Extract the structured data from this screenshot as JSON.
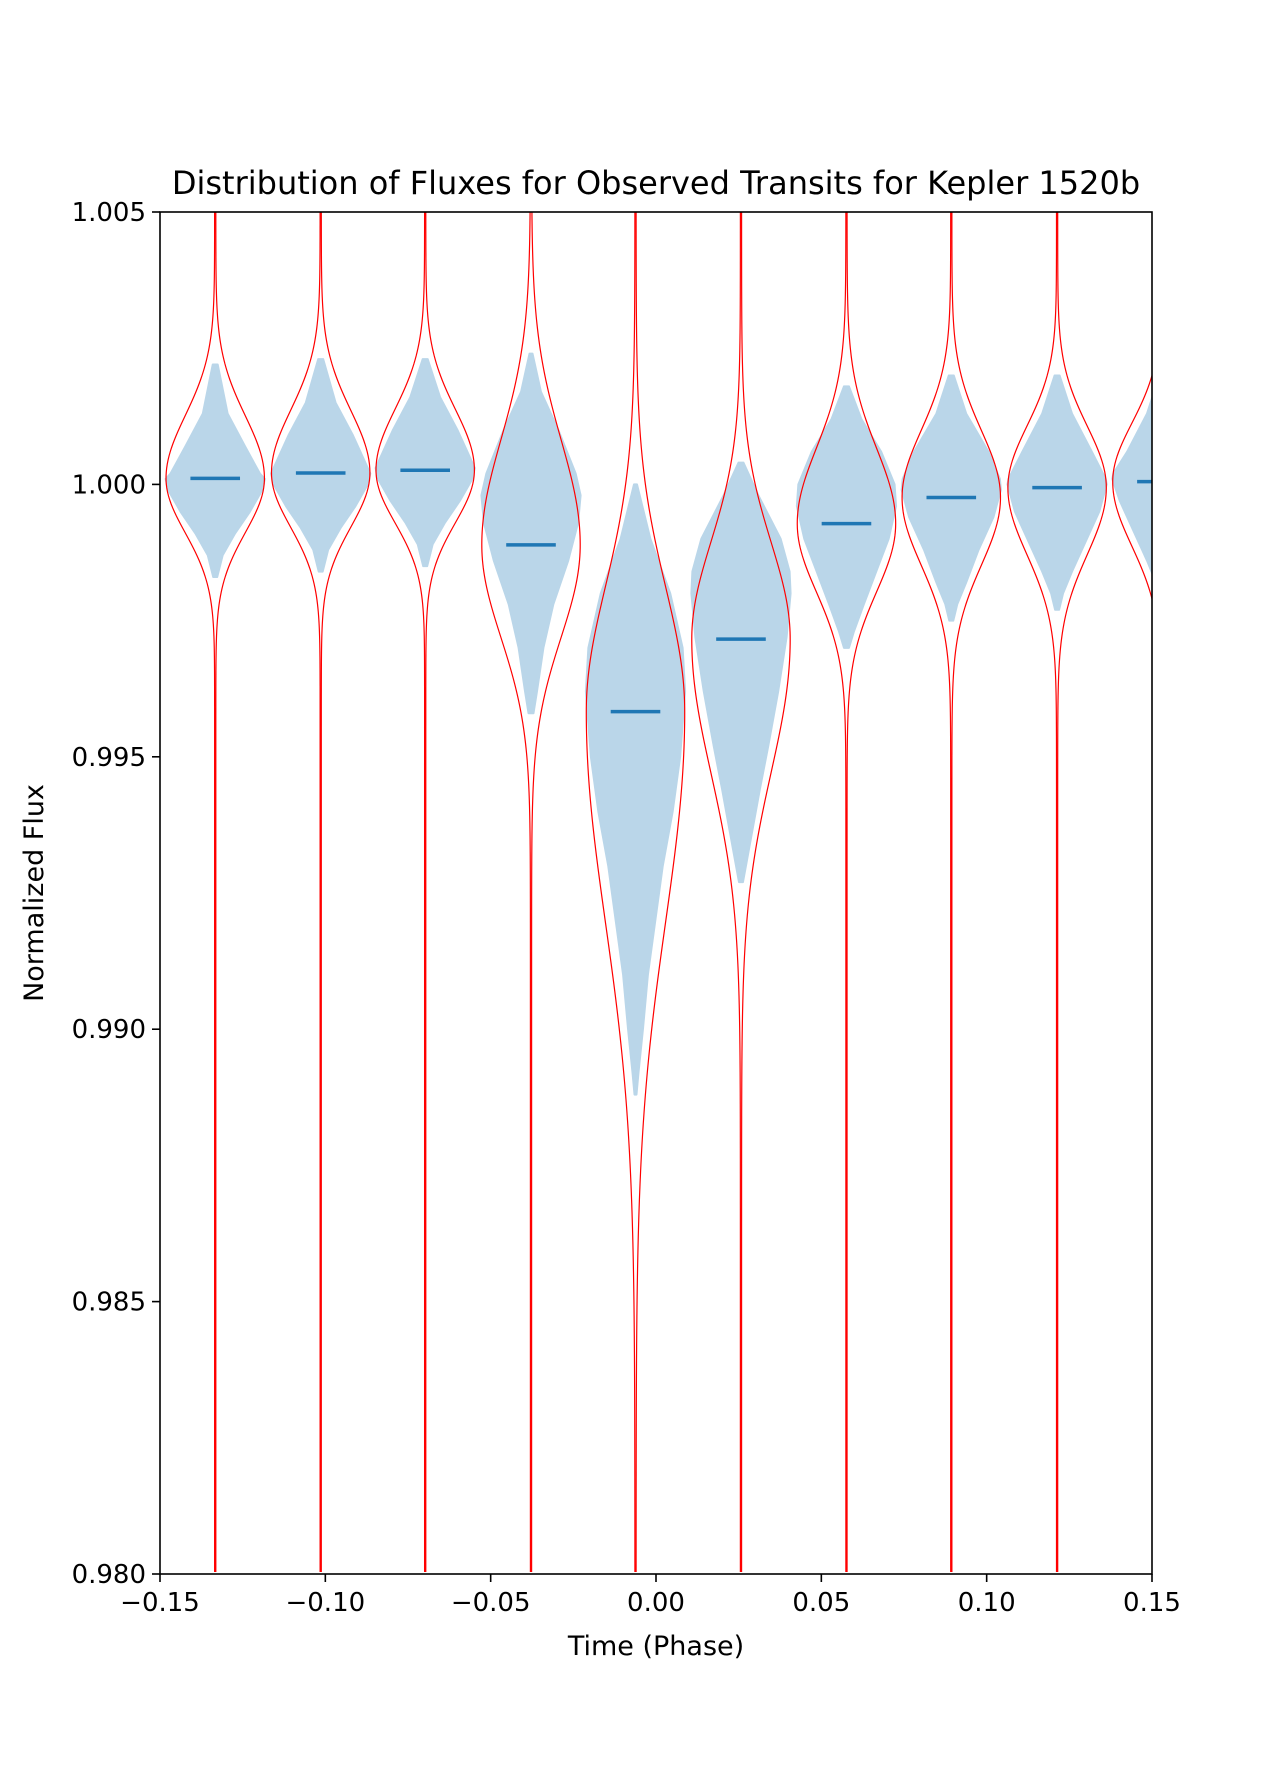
{
  "chart_data": {
    "type": "violin",
    "title": "Distribution of Fluxes for Observed Transits for Kepler 1520b",
    "xlabel": "Time (Phase)",
    "ylabel": "Normalized Flux",
    "xlim": [
      -0.15,
      0.15
    ],
    "ylim": [
      0.98,
      1.005
    ],
    "x_ticks": [
      -0.15,
      -0.1,
      -0.05,
      0.0,
      0.05,
      0.1,
      0.15
    ],
    "x_tick_labels": [
      "−0.15",
      "−0.10",
      "−0.05",
      "0.00",
      "0.05",
      "0.10",
      "0.15"
    ],
    "y_ticks": [
      0.98,
      0.985,
      0.99,
      0.995,
      1.0,
      1.005
    ],
    "y_tick_labels": [
      "0.980",
      "0.985",
      "0.990",
      "0.995",
      "1.000",
      "1.005"
    ],
    "grid": false,
    "colors": {
      "violin_fill": "#bad6e9",
      "median": "#1f77b4",
      "model_curve": "#ff0000"
    },
    "bins": [
      {
        "x": -0.1333,
        "median": 1.00011,
        "half_width": 0.015,
        "shape": [
          [
            1.0022,
            0.05
          ],
          [
            1.0013,
            0.25
          ],
          [
            1.0007,
            0.6
          ],
          [
            1.0002,
            0.9
          ],
          [
            1.0001,
            1.0
          ],
          [
            0.9999,
            0.95
          ],
          [
            0.9995,
            0.7
          ],
          [
            0.9991,
            0.4
          ],
          [
            0.9987,
            0.15
          ],
          [
            0.9983,
            0.04
          ]
        ]
      },
      {
        "x": -0.1014,
        "median": 1.00021,
        "half_width": 0.015,
        "shape": [
          [
            1.0023,
            0.05
          ],
          [
            1.0015,
            0.3
          ],
          [
            1.0009,
            0.65
          ],
          [
            1.0004,
            0.9
          ],
          [
            1.0002,
            1.0
          ],
          [
            1.0,
            0.95
          ],
          [
            0.9996,
            0.7
          ],
          [
            0.9992,
            0.4
          ],
          [
            0.9988,
            0.15
          ],
          [
            0.9984,
            0.04
          ]
        ]
      },
      {
        "x": -0.0698,
        "median": 1.00026,
        "half_width": 0.015,
        "shape": [
          [
            1.0023,
            0.05
          ],
          [
            1.0016,
            0.3
          ],
          [
            1.001,
            0.65
          ],
          [
            1.0005,
            0.9
          ],
          [
            1.0003,
            1.0
          ],
          [
            1.0001,
            0.95
          ],
          [
            0.9997,
            0.7
          ],
          [
            0.9993,
            0.4
          ],
          [
            0.9989,
            0.15
          ],
          [
            0.9985,
            0.04
          ]
        ]
      },
      {
        "x": -0.0378,
        "median": 0.99889,
        "half_width": 0.015,
        "shape": [
          [
            1.0024,
            0.03
          ],
          [
            1.0017,
            0.2
          ],
          [
            1.001,
            0.55
          ],
          [
            1.0002,
            0.9
          ],
          [
            0.9998,
            1.0
          ],
          [
            0.9993,
            0.95
          ],
          [
            0.9986,
            0.75
          ],
          [
            0.9978,
            0.45
          ],
          [
            0.997,
            0.25
          ],
          [
            0.9962,
            0.12
          ],
          [
            0.9958,
            0.05
          ]
        ]
      },
      {
        "x": -0.0062,
        "median": 0.99583,
        "half_width": 0.015,
        "shape": [
          [
            1.0,
            0.03
          ],
          [
            0.999,
            0.3
          ],
          [
            0.998,
            0.7
          ],
          [
            0.997,
            0.95
          ],
          [
            0.9962,
            1.0
          ],
          [
            0.995,
            0.9
          ],
          [
            0.994,
            0.75
          ],
          [
            0.993,
            0.55
          ],
          [
            0.992,
            0.4
          ],
          [
            0.991,
            0.25
          ],
          [
            0.99,
            0.15
          ],
          [
            0.9892,
            0.06
          ],
          [
            0.9888,
            0.02
          ]
        ]
      },
      {
        "x": 0.0257,
        "median": 0.99716,
        "half_width": 0.015,
        "shape": [
          [
            1.0004,
            0.05
          ],
          [
            0.9998,
            0.35
          ],
          [
            0.999,
            0.8
          ],
          [
            0.9984,
            0.98
          ],
          [
            0.998,
            1.0
          ],
          [
            0.9972,
            0.92
          ],
          [
            0.9962,
            0.75
          ],
          [
            0.9952,
            0.55
          ],
          [
            0.9944,
            0.38
          ],
          [
            0.9936,
            0.22
          ],
          [
            0.993,
            0.1
          ],
          [
            0.9927,
            0.04
          ]
        ]
      },
      {
        "x": 0.0576,
        "median": 0.99928,
        "half_width": 0.015,
        "shape": [
          [
            1.0018,
            0.05
          ],
          [
            1.0012,
            0.3
          ],
          [
            1.0006,
            0.7
          ],
          [
            1.0,
            0.97
          ],
          [
            0.9996,
            1.0
          ],
          [
            0.999,
            0.85
          ],
          [
            0.9984,
            0.6
          ],
          [
            0.9978,
            0.35
          ],
          [
            0.9973,
            0.15
          ],
          [
            0.997,
            0.05
          ]
        ]
      },
      {
        "x": 0.0893,
        "median": 0.99976,
        "half_width": 0.015,
        "shape": [
          [
            1.002,
            0.05
          ],
          [
            1.0013,
            0.3
          ],
          [
            1.0006,
            0.75
          ],
          [
            1.0001,
            0.98
          ],
          [
            0.9999,
            1.0
          ],
          [
            0.9994,
            0.85
          ],
          [
            0.9988,
            0.55
          ],
          [
            0.9982,
            0.3
          ],
          [
            0.9978,
            0.12
          ],
          [
            0.9975,
            0.04
          ]
        ]
      },
      {
        "x": 0.1213,
        "median": 0.99994,
        "half_width": 0.015,
        "shape": [
          [
            1.002,
            0.05
          ],
          [
            1.0013,
            0.3
          ],
          [
            1.0006,
            0.7
          ],
          [
            1.0001,
            0.98
          ],
          [
            1.0,
            1.0
          ],
          [
            0.9995,
            0.85
          ],
          [
            0.9989,
            0.55
          ],
          [
            0.9984,
            0.3
          ],
          [
            0.998,
            0.12
          ],
          [
            0.9977,
            0.04
          ]
        ]
      },
      {
        "x": 0.153,
        "median": 1.00005,
        "half_width": 0.015,
        "shape": [
          [
            1.002,
            0.05
          ],
          [
            1.0013,
            0.3
          ],
          [
            1.0006,
            0.7
          ],
          [
            1.0002,
            0.98
          ],
          [
            1.0001,
            1.0
          ],
          [
            0.9997,
            0.85
          ],
          [
            0.9991,
            0.55
          ],
          [
            0.9986,
            0.3
          ],
          [
            0.9982,
            0.12
          ],
          [
            0.9979,
            0.04
          ]
        ]
      }
    ]
  }
}
